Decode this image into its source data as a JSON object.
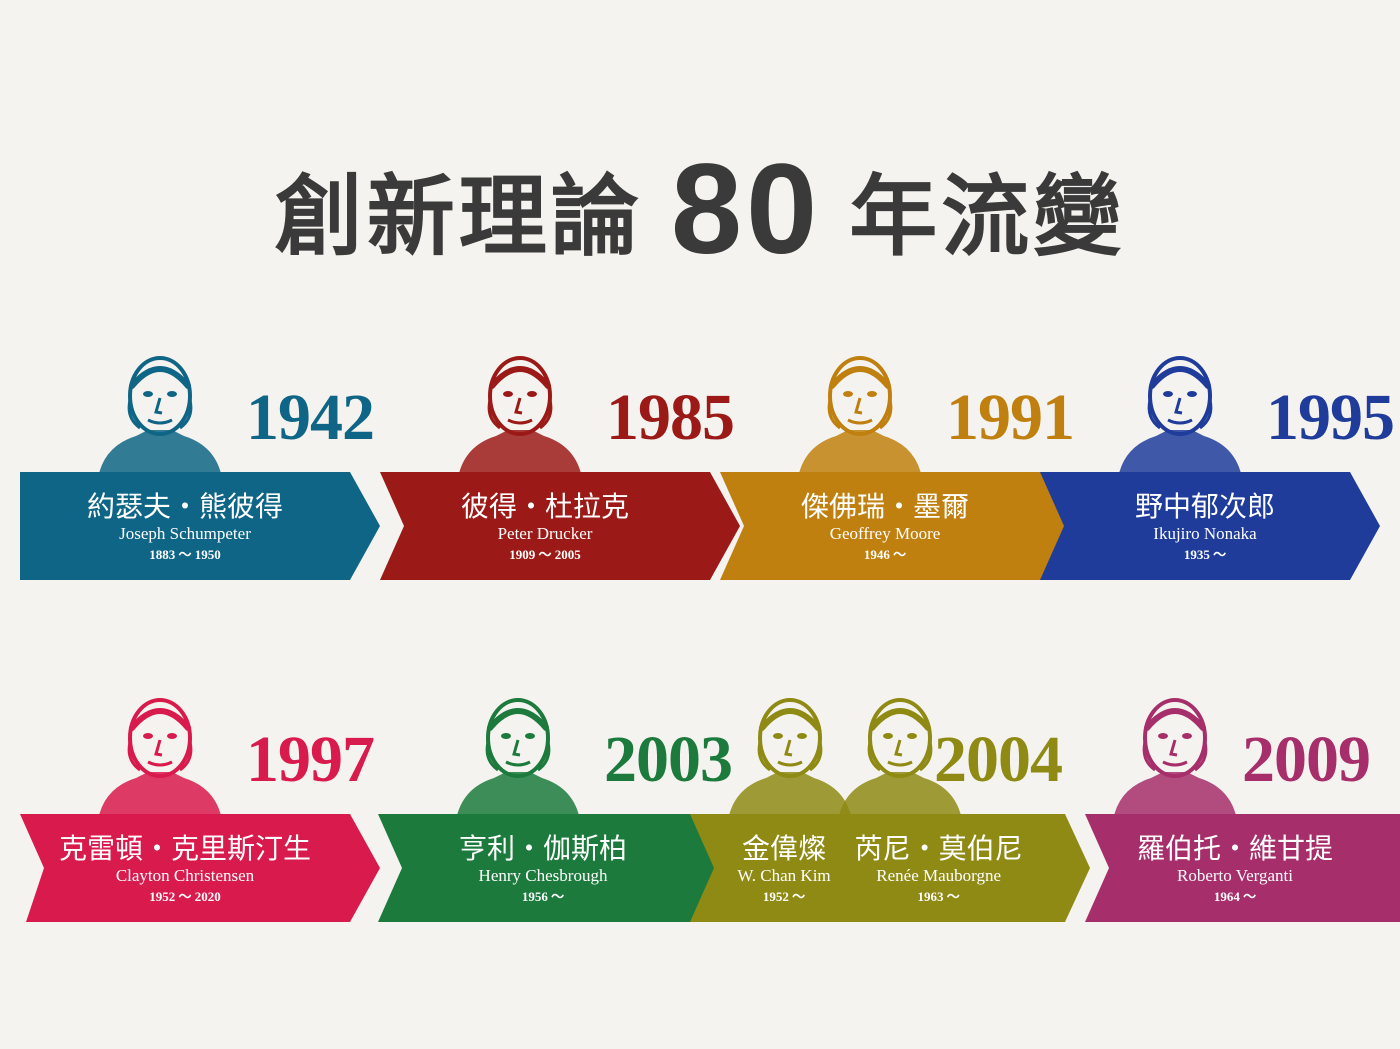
{
  "title": {
    "main": "創新理論",
    "num": "80",
    "rest": "年流變"
  },
  "items": [
    {
      "year": "1942",
      "color": "#0f6585",
      "people": [
        {
          "zh": "約瑟夫・熊彼得",
          "en": "Joseph Schumpeter",
          "years": "1883 ～ 1950"
        }
      ]
    },
    {
      "year": "1985",
      "color": "#9b1a17",
      "people": [
        {
          "zh": "彼得・杜拉克",
          "en": "Peter Drucker",
          "years": "1909 ～ 2005"
        }
      ]
    },
    {
      "year": "1991",
      "color": "#c0800f",
      "people": [
        {
          "zh": "傑佛瑞・墨爾",
          "en": "Geoffrey Moore",
          "years": "1946 ～"
        }
      ]
    },
    {
      "year": "1995",
      "color": "#1f3c9b",
      "people": [
        {
          "zh": "野中郁次郎",
          "en": "Ikujiro Nonaka",
          "years": "1935 ～"
        }
      ]
    },
    {
      "year": "1997",
      "color": "#d81a4c",
      "people": [
        {
          "zh": "克雷頓・克里斯汀生",
          "en": "Clayton Christensen",
          "years": "1952 ～ 2020"
        }
      ]
    },
    {
      "year": "2003",
      "color": "#1b7a3c",
      "people": [
        {
          "zh": "亨利・伽斯柏",
          "en": "Henry Chesbrough",
          "years": "1956 ～"
        }
      ]
    },
    {
      "year": "2004",
      "color": "#8e8a14",
      "people": [
        {
          "zh": "金偉燦",
          "en": "W. Chan Kim",
          "years": "1952 ～"
        },
        {
          "zh": "芮尼・莫伯尼",
          "en": "Renée Mauborgne",
          "years": "1963 ～"
        }
      ]
    },
    {
      "year": "2009",
      "color": "#a62e6a",
      "people": [
        {
          "zh": "羅伯托・維甘提",
          "en": "Roberto Verganti",
          "years": "1964 ～"
        }
      ]
    }
  ]
}
